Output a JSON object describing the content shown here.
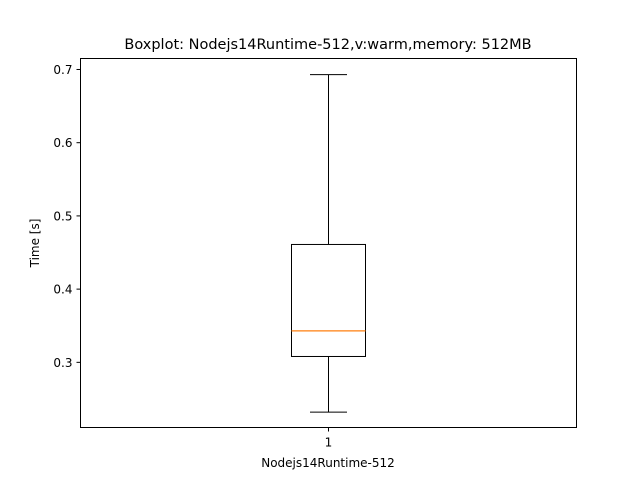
{
  "chart_data": {
    "type": "boxplot",
    "title": "Boxplot: Nodejs14Runtime-512,v:warm,memory: 512MB",
    "xlabel": "Nodejs14Runtime-512",
    "ylabel": "Time [s]",
    "x_ticks": [
      "1"
    ],
    "y_ticks": [
      "0.3",
      "0.4",
      "0.5",
      "0.6",
      "0.7"
    ],
    "ylim": [
      0.211,
      0.715
    ],
    "grid": false,
    "series": [
      {
        "category": "1",
        "whisker_low": 0.232,
        "q1": 0.308,
        "median": 0.343,
        "q3": 0.461,
        "whisker_high": 0.693
      }
    ],
    "colors": {
      "box": "#000000",
      "median": "#ff7f0e",
      "axes": "#000000"
    }
  }
}
